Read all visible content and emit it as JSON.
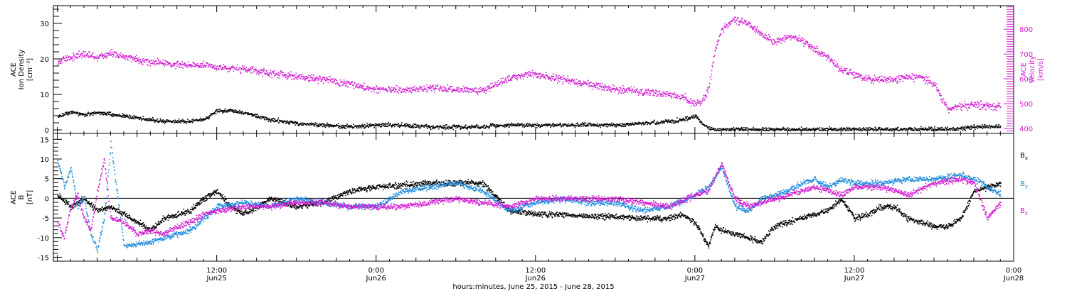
{
  "figure": {
    "xlabel": "hours:minutes, June 25, 2015 - June 28, 2015",
    "time_ticks": [
      {
        "t": 12,
        "line1": "12:00",
        "line2": "Jun25"
      },
      {
        "t": 24,
        "line1": "0:00",
        "line2": "Jun26"
      },
      {
        "t": 36,
        "line1": "12:00",
        "line2": "Jun26"
      },
      {
        "t": 48,
        "line1": "0:00",
        "line2": "Jun27"
      },
      {
        "t": 60,
        "line1": "12:00",
        "line2": "Jun27"
      },
      {
        "t": 72,
        "line1": "0:00",
        "line2": "Jun28"
      }
    ],
    "colors": {
      "black": "#000000",
      "magenta": "#d21ed2",
      "blue": "#1e8cdc"
    }
  },
  "chart_data": [
    {
      "type": "scatter",
      "panel": "top",
      "ylabel_left": [
        "ACE",
        "Ion Density",
        "[cm⁻³]"
      ],
      "ylabel_right": [
        "ACE",
        "Velocity",
        "[km/s]"
      ],
      "x_unit": "hours since 2015-06-25 00:00 UT",
      "xlim": [
        -0.3,
        72
      ],
      "ylim_left": [
        -1,
        35
      ],
      "yticks_left": [
        0,
        10,
        20,
        30
      ],
      "ylim_right": [
        380,
        895
      ],
      "yticks_right": [
        400,
        500,
        600,
        700,
        800
      ],
      "series": [
        {
          "name": "Ion Density",
          "axis": "left",
          "color": "#000000",
          "x": [
            0,
            1,
            2,
            3,
            4,
            5,
            6,
            7,
            8,
            9,
            10,
            11,
            12,
            13,
            14,
            15,
            16,
            18,
            20,
            22,
            24,
            26,
            28,
            30,
            32,
            34,
            36,
            38,
            40,
            42,
            44,
            46,
            47,
            47.5,
            48,
            48.5,
            49,
            49.5,
            50,
            52,
            54,
            56,
            58,
            60,
            62,
            64,
            66,
            68,
            69,
            70,
            71
          ],
          "y": [
            4,
            5,
            4.5,
            5,
            4.5,
            4,
            3.5,
            3,
            2.5,
            2.5,
            2.5,
            3,
            5.5,
            5.5,
            5,
            4,
            3,
            2,
            1.5,
            1,
            1.5,
            1.5,
            1,
            1,
            1,
            1.5,
            1.5,
            1.5,
            1.5,
            1.5,
            2,
            2.5,
            3,
            3.5,
            4,
            2,
            0.5,
            0.2,
            0.2,
            0.3,
            0.3,
            0.3,
            0.3,
            0.3,
            0.3,
            0.3,
            0.3,
            0.5,
            1,
            1,
            1.2
          ]
        },
        {
          "name": "Velocity",
          "axis": "right",
          "color": "#d21ed2",
          "x": [
            0,
            1,
            2,
            3,
            4,
            5,
            6,
            7,
            8,
            9,
            10,
            12,
            14,
            16,
            18,
            20,
            22,
            24,
            26,
            28,
            30,
            32,
            34,
            35,
            36,
            37,
            38,
            40,
            42,
            44,
            46,
            47,
            48,
            48.5,
            49,
            49.5,
            50,
            51,
            52,
            53,
            54,
            55,
            56,
            57,
            58,
            59,
            60,
            61,
            62,
            63,
            64,
            65,
            66,
            67,
            68,
            69,
            70,
            71
          ],
          "y": [
            670,
            690,
            700,
            690,
            705,
            690,
            680,
            670,
            665,
            660,
            660,
            650,
            640,
            625,
            610,
            600,
            580,
            560,
            555,
            565,
            560,
            555,
            605,
            615,
            620,
            610,
            600,
            580,
            560,
            550,
            540,
            530,
            500,
            510,
            560,
            720,
            800,
            840,
            825,
            780,
            750,
            770,
            760,
            720,
            690,
            640,
            620,
            600,
            600,
            600,
            610,
            610,
            580,
            480,
            490,
            500,
            490,
            490
          ]
        }
      ]
    },
    {
      "type": "scatter",
      "panel": "bottom",
      "ylabel": [
        "ACE",
        "B",
        "[nT]"
      ],
      "x_unit": "hours since 2015-06-25 00:00 UT",
      "xlim": [
        -0.3,
        72
      ],
      "ylim": [
        -16,
        16.5
      ],
      "yticks": [
        -15,
        -10,
        -5,
        0,
        5,
        10,
        15
      ],
      "legend_placement": "right",
      "series": [
        {
          "name": "Bx",
          "legend_main": "B",
          "legend_sub": "x",
          "color": "#000000",
          "x": [
            0,
            1,
            2,
            3,
            4,
            5,
            6,
            7,
            8,
            9,
            10,
            11,
            12,
            13,
            14,
            15,
            16,
            18,
            20,
            22,
            24,
            26,
            28,
            30,
            32,
            34,
            36,
            38,
            40,
            42,
            44,
            46,
            47,
            48,
            48.5,
            49,
            49.5,
            50,
            51,
            52,
            53,
            54,
            55,
            56,
            57,
            58,
            59,
            60,
            61,
            62,
            63,
            64,
            65,
            66,
            67,
            68,
            69,
            70,
            71
          ],
          "y": [
            1,
            -2,
            0,
            -3,
            -2,
            -4,
            -6,
            -8,
            -5,
            -4,
            -3,
            0,
            2,
            -2,
            -4,
            -2,
            0,
            -2,
            -1,
            2,
            3,
            3.5,
            4,
            4,
            4,
            -3,
            -4,
            -4,
            -4.5,
            -4.5,
            -5,
            -5,
            -4,
            -6,
            -9,
            -12,
            -7,
            -8,
            -9,
            -10,
            -11,
            -7,
            -6,
            -5,
            -4,
            -3,
            0,
            -5,
            -4,
            -2,
            -2,
            -5,
            -6,
            -7,
            -7,
            -5,
            2,
            3,
            4
          ]
        },
        {
          "name": "By",
          "legend_main": "B",
          "legend_sub": "y",
          "color": "#1e8cdc",
          "x": [
            0,
            0.5,
            1,
            1.5,
            2,
            2.5,
            3,
            3.5,
            4,
            5,
            6,
            7,
            8,
            9,
            10,
            11,
            12,
            14,
            16,
            18,
            20,
            22,
            24,
            26,
            28,
            30,
            32,
            34,
            36,
            38,
            40,
            42,
            44,
            46,
            48,
            49,
            50,
            51,
            52,
            53,
            54,
            55,
            56,
            57,
            58,
            59,
            60,
            62,
            64,
            66,
            68,
            69,
            70,
            71
          ],
          "y": [
            10,
            3,
            8,
            -2,
            0,
            -9,
            -13,
            -5,
            14,
            -12,
            -11.5,
            -11,
            -10,
            -9,
            -8,
            -5,
            -2,
            -1,
            -2,
            0,
            -1,
            -2,
            -2,
            2,
            3,
            4,
            2,
            -3,
            -1,
            0,
            -1,
            -1,
            -3,
            -2,
            1,
            3,
            8,
            -2,
            -3,
            0,
            1,
            2,
            4,
            5,
            3,
            5,
            4,
            4,
            5,
            5,
            6,
            5,
            3,
            1
          ]
        },
        {
          "name": "Bz",
          "legend_main": "B",
          "legend_sub": "z",
          "color": "#d21ed2",
          "x": [
            0,
            0.5,
            1,
            1.5,
            2,
            2.5,
            3,
            3.5,
            4,
            5,
            6,
            7,
            8,
            9,
            10,
            11,
            12,
            14,
            16,
            18,
            20,
            22,
            24,
            26,
            28,
            30,
            32,
            34,
            36,
            38,
            40,
            42,
            44,
            46,
            48,
            49,
            50,
            51,
            52,
            53,
            54,
            55,
            56,
            57,
            58,
            59,
            60,
            62,
            64,
            66,
            68,
            69,
            70,
            71
          ],
          "y": [
            -6,
            -10,
            -2,
            1,
            -5,
            -8,
            2,
            10,
            -5,
            -6,
            -9,
            -8,
            -9,
            -7,
            -6,
            -4,
            -3,
            -2,
            -2,
            -1,
            -1,
            -2,
            -2,
            -2,
            -1,
            0,
            -1,
            -2,
            0,
            0,
            0,
            0,
            -1,
            -2,
            1,
            2,
            9,
            0,
            -2,
            -1,
            0,
            1,
            2,
            3,
            2,
            1,
            3,
            3,
            1,
            4,
            5,
            4,
            -5,
            -1
          ]
        }
      ]
    }
  ]
}
